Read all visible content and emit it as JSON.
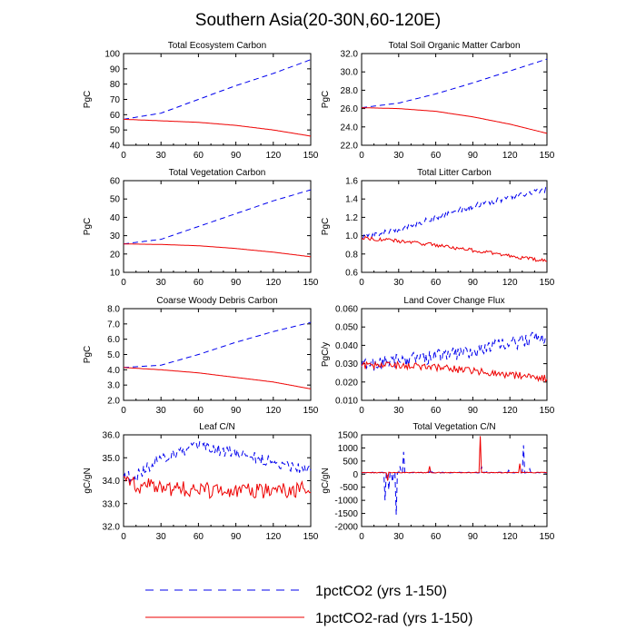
{
  "page_title": "Southern Asia(20-30N,60-120E)",
  "colors": {
    "series_1": "#0000ee",
    "series_2": "#ee0000",
    "axis": "#000000"
  },
  "legend": {
    "placement": "bottom",
    "entries": [
      {
        "label": "1pctCO2 (yrs 1-150)",
        "style": "dashed",
        "color": "#0000ee"
      },
      {
        "label": "1pctCO2-rad (yrs 1-150)",
        "style": "solid",
        "color": "#ee0000"
      }
    ]
  },
  "chart_data": [
    {
      "type": "line",
      "title": "Total Ecosystem Carbon",
      "ylabel": "PgC",
      "xlim": [
        0,
        150
      ],
      "ylim": [
        40,
        100
      ],
      "xticks": [
        0,
        30,
        60,
        90,
        120,
        150
      ],
      "xtick_labels": [
        "0",
        "30",
        "60",
        "90",
        "120",
        "150"
      ],
      "yticks": [
        40,
        50,
        60,
        70,
        80,
        90,
        100
      ],
      "ytick_labels": [
        "40",
        "50",
        "60",
        "70",
        "80",
        "90",
        "100"
      ],
      "x": [
        0,
        30,
        60,
        90,
        120,
        150
      ],
      "series": [
        {
          "values": [
            57,
            61,
            70,
            79,
            87,
            96
          ],
          "noise": 0
        },
        {
          "values": [
            57,
            56,
            55,
            53,
            50,
            46
          ],
          "noise": 0
        }
      ]
    },
    {
      "type": "line",
      "title": "Total Soil Organic Matter Carbon",
      "ylabel": "PgC",
      "xlim": [
        0,
        150
      ],
      "ylim": [
        22,
        32
      ],
      "xticks": [
        0,
        30,
        60,
        90,
        120,
        150
      ],
      "xtick_labels": [
        "0",
        "30",
        "60",
        "90",
        "120",
        "150"
      ],
      "yticks": [
        22,
        24,
        26,
        28,
        30,
        32
      ],
      "ytick_labels": [
        "22.0",
        "24.0",
        "26.0",
        "28.0",
        "30.0",
        "32.0"
      ],
      "x": [
        0,
        30,
        60,
        90,
        120,
        150
      ],
      "series": [
        {
          "values": [
            26.1,
            26.6,
            27.6,
            28.8,
            30.1,
            31.4
          ],
          "noise": 0
        },
        {
          "values": [
            26.1,
            26.0,
            25.7,
            25.1,
            24.3,
            23.3
          ],
          "noise": 0
        }
      ]
    },
    {
      "type": "line",
      "title": "Total Vegetation Carbon",
      "ylabel": "PgC",
      "xlim": [
        0,
        150
      ],
      "ylim": [
        10,
        60
      ],
      "xticks": [
        0,
        30,
        60,
        90,
        120,
        150
      ],
      "xtick_labels": [
        "0",
        "30",
        "60",
        "90",
        "120",
        "150"
      ],
      "yticks": [
        10,
        20,
        30,
        40,
        50,
        60
      ],
      "ytick_labels": [
        "10",
        "20",
        "30",
        "40",
        "50",
        "60"
      ],
      "x": [
        0,
        30,
        60,
        90,
        120,
        150
      ],
      "series": [
        {
          "values": [
            25.5,
            28,
            35,
            42,
            49,
            55
          ],
          "noise": 0
        },
        {
          "values": [
            25.5,
            25.2,
            24.5,
            23,
            21,
            18.5
          ],
          "noise": 0
        }
      ]
    },
    {
      "type": "line",
      "title": "Total Litter Carbon",
      "ylabel": "PgC",
      "xlim": [
        0,
        150
      ],
      "ylim": [
        0.6,
        1.6
      ],
      "xticks": [
        0,
        30,
        60,
        90,
        120,
        150
      ],
      "xtick_labels": [
        "0",
        "30",
        "60",
        "90",
        "120",
        "150"
      ],
      "yticks": [
        0.6,
        0.8,
        1.0,
        1.2,
        1.4,
        1.6
      ],
      "ytick_labels": [
        "0.6",
        "0.8",
        "1.0",
        "1.2",
        "1.4",
        "1.6"
      ],
      "x": [
        0,
        30,
        60,
        90,
        120,
        150
      ],
      "series": [
        {
          "values": [
            0.98,
            1.07,
            1.2,
            1.32,
            1.42,
            1.5
          ],
          "noise": 0.03
        },
        {
          "values": [
            0.98,
            0.94,
            0.9,
            0.84,
            0.78,
            0.72
          ],
          "noise": 0.02
        }
      ]
    },
    {
      "type": "line",
      "title": "Coarse Woody Debris Carbon",
      "ylabel": "PgC",
      "xlim": [
        0,
        150
      ],
      "ylim": [
        2,
        8
      ],
      "xticks": [
        0,
        30,
        60,
        90,
        120,
        150
      ],
      "xtick_labels": [
        "0",
        "30",
        "60",
        "90",
        "120",
        "150"
      ],
      "yticks": [
        2,
        3,
        4,
        5,
        6,
        7,
        8
      ],
      "ytick_labels": [
        "2.0",
        "3.0",
        "4.0",
        "5.0",
        "6.0",
        "7.0",
        "8.0"
      ],
      "x": [
        0,
        30,
        60,
        90,
        120,
        150
      ],
      "series": [
        {
          "values": [
            4.15,
            4.3,
            5.0,
            5.8,
            6.5,
            7.1
          ],
          "noise": 0
        },
        {
          "values": [
            4.15,
            4.0,
            3.8,
            3.5,
            3.2,
            2.75
          ],
          "noise": 0
        }
      ]
    },
    {
      "type": "line",
      "title": "Land Cover Change Flux",
      "ylabel": "PgC/y",
      "xlim": [
        0,
        150
      ],
      "ylim": [
        0.01,
        0.06
      ],
      "xticks": [
        0,
        30,
        60,
        90,
        120,
        150
      ],
      "xtick_labels": [
        "0",
        "30",
        "60",
        "90",
        "120",
        "150"
      ],
      "yticks": [
        0.01,
        0.02,
        0.03,
        0.04,
        0.05,
        0.06
      ],
      "ytick_labels": [
        "0.010",
        "0.020",
        "0.030",
        "0.040",
        "0.050",
        "0.060"
      ],
      "x": [
        0,
        30,
        60,
        90,
        120,
        150
      ],
      "series": [
        {
          "values": [
            0.029,
            0.032,
            0.034,
            0.037,
            0.041,
            0.045
          ],
          "noise": 0.004
        },
        {
          "values": [
            0.029,
            0.029,
            0.028,
            0.026,
            0.024,
            0.022
          ],
          "noise": 0.002
        }
      ]
    },
    {
      "type": "line",
      "title": "Leaf C/N",
      "ylabel": "gC/gN",
      "xlim": [
        0,
        150
      ],
      "ylim": [
        32,
        36
      ],
      "xticks": [
        0,
        30,
        60,
        90,
        120,
        150
      ],
      "xtick_labels": [
        "0",
        "30",
        "60",
        "90",
        "120",
        "150"
      ],
      "yticks": [
        32,
        33,
        34,
        35,
        36
      ],
      "ytick_labels": [
        "32.0",
        "33.0",
        "34.0",
        "35.0",
        "36.0"
      ],
      "x": [
        0,
        10,
        30,
        60,
        90,
        120,
        150
      ],
      "series": [
        {
          "values": [
            34.2,
            34.2,
            35.0,
            35.5,
            35.2,
            34.8,
            34.5
          ],
          "noise": 0.25
        },
        {
          "values": [
            34.2,
            33.8,
            33.7,
            33.6,
            33.5,
            33.6,
            33.6
          ],
          "noise": 0.35
        }
      ]
    },
    {
      "type": "line",
      "title": "Total Vegetation C/N",
      "ylabel": "gC/gN",
      "xlim": [
        0,
        150
      ],
      "ylim": [
        -2000,
        1500
      ],
      "xticks": [
        0,
        30,
        60,
        90,
        120,
        150
      ],
      "xtick_labels": [
        "0",
        "30",
        "60",
        "90",
        "120",
        "150"
      ],
      "yticks": [
        -2000,
        -1500,
        -1000,
        -500,
        0,
        500,
        1000,
        1500
      ],
      "ytick_labels": [
        "-2000",
        "-1500",
        "-1000",
        "-500",
        "0",
        "500",
        "1000",
        "1500"
      ],
      "x": [
        0,
        150
      ],
      "series": [
        {
          "values": [
            60,
            60
          ],
          "noise": 15,
          "spikes": [
            [
              19,
              -1000
            ],
            [
              22,
              -600
            ],
            [
              25,
              -300
            ],
            [
              28,
              -1550
            ],
            [
              31,
              300
            ],
            [
              34,
              850
            ],
            [
              56,
              200
            ],
            [
              97,
              300
            ],
            [
              102,
              150
            ],
            [
              119,
              150
            ],
            [
              131,
              1100
            ],
            [
              136,
              200
            ]
          ]
        },
        {
          "values": [
            60,
            60
          ],
          "noise": 15,
          "spikes": [
            [
              21,
              -250
            ],
            [
              55,
              300
            ],
            [
              96,
              1450
            ],
            [
              128,
              400
            ]
          ]
        }
      ]
    }
  ]
}
